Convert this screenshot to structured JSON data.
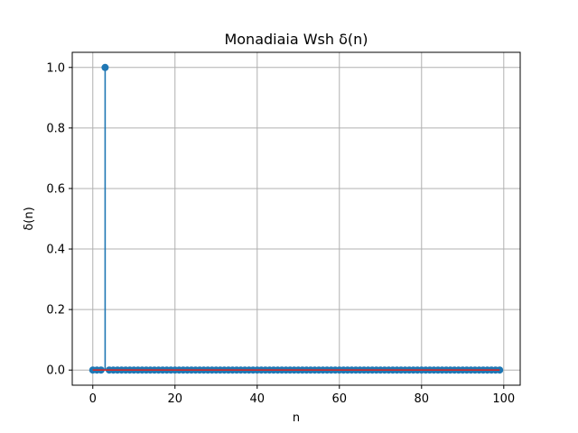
{
  "chart_data": {
    "type": "stem",
    "title": "Monadiaia Wsh δ(n)",
    "xlabel": "n",
    "ylabel": "δ(n)",
    "xlim": [
      -5,
      104
    ],
    "ylim": [
      -0.05,
      1.05
    ],
    "x_ticks": [
      0,
      20,
      40,
      60,
      80,
      100
    ],
    "y_ticks": [
      0.0,
      0.2,
      0.4,
      0.6,
      0.8,
      1.0
    ],
    "x_tick_labels": [
      "0",
      "20",
      "40",
      "60",
      "80",
      "100"
    ],
    "y_tick_labels": [
      "0.0",
      "0.2",
      "0.4",
      "0.6",
      "0.8",
      "1.0"
    ],
    "grid": true,
    "impulse_index": 3,
    "n_start": 0,
    "n_end": 99,
    "series": [
      {
        "values": [
          0,
          0,
          0,
          1,
          0,
          0,
          0,
          0,
          0,
          0,
          0,
          0,
          0,
          0,
          0,
          0,
          0,
          0,
          0,
          0,
          0,
          0,
          0,
          0,
          0,
          0,
          0,
          0,
          0,
          0,
          0,
          0,
          0,
          0,
          0,
          0,
          0,
          0,
          0,
          0,
          0,
          0,
          0,
          0,
          0,
          0,
          0,
          0,
          0,
          0,
          0,
          0,
          0,
          0,
          0,
          0,
          0,
          0,
          0,
          0,
          0,
          0,
          0,
          0,
          0,
          0,
          0,
          0,
          0,
          0,
          0,
          0,
          0,
          0,
          0,
          0,
          0,
          0,
          0,
          0,
          0,
          0,
          0,
          0,
          0,
          0,
          0,
          0,
          0,
          0,
          0,
          0,
          0,
          0,
          0,
          0,
          0,
          0,
          0,
          0
        ]
      }
    ],
    "colors": {
      "marker": "#1f77b4",
      "stem": "#1f77b4",
      "baseline": "#d62728",
      "grid": "#b0b0b0",
      "axes": "#000000"
    }
  }
}
